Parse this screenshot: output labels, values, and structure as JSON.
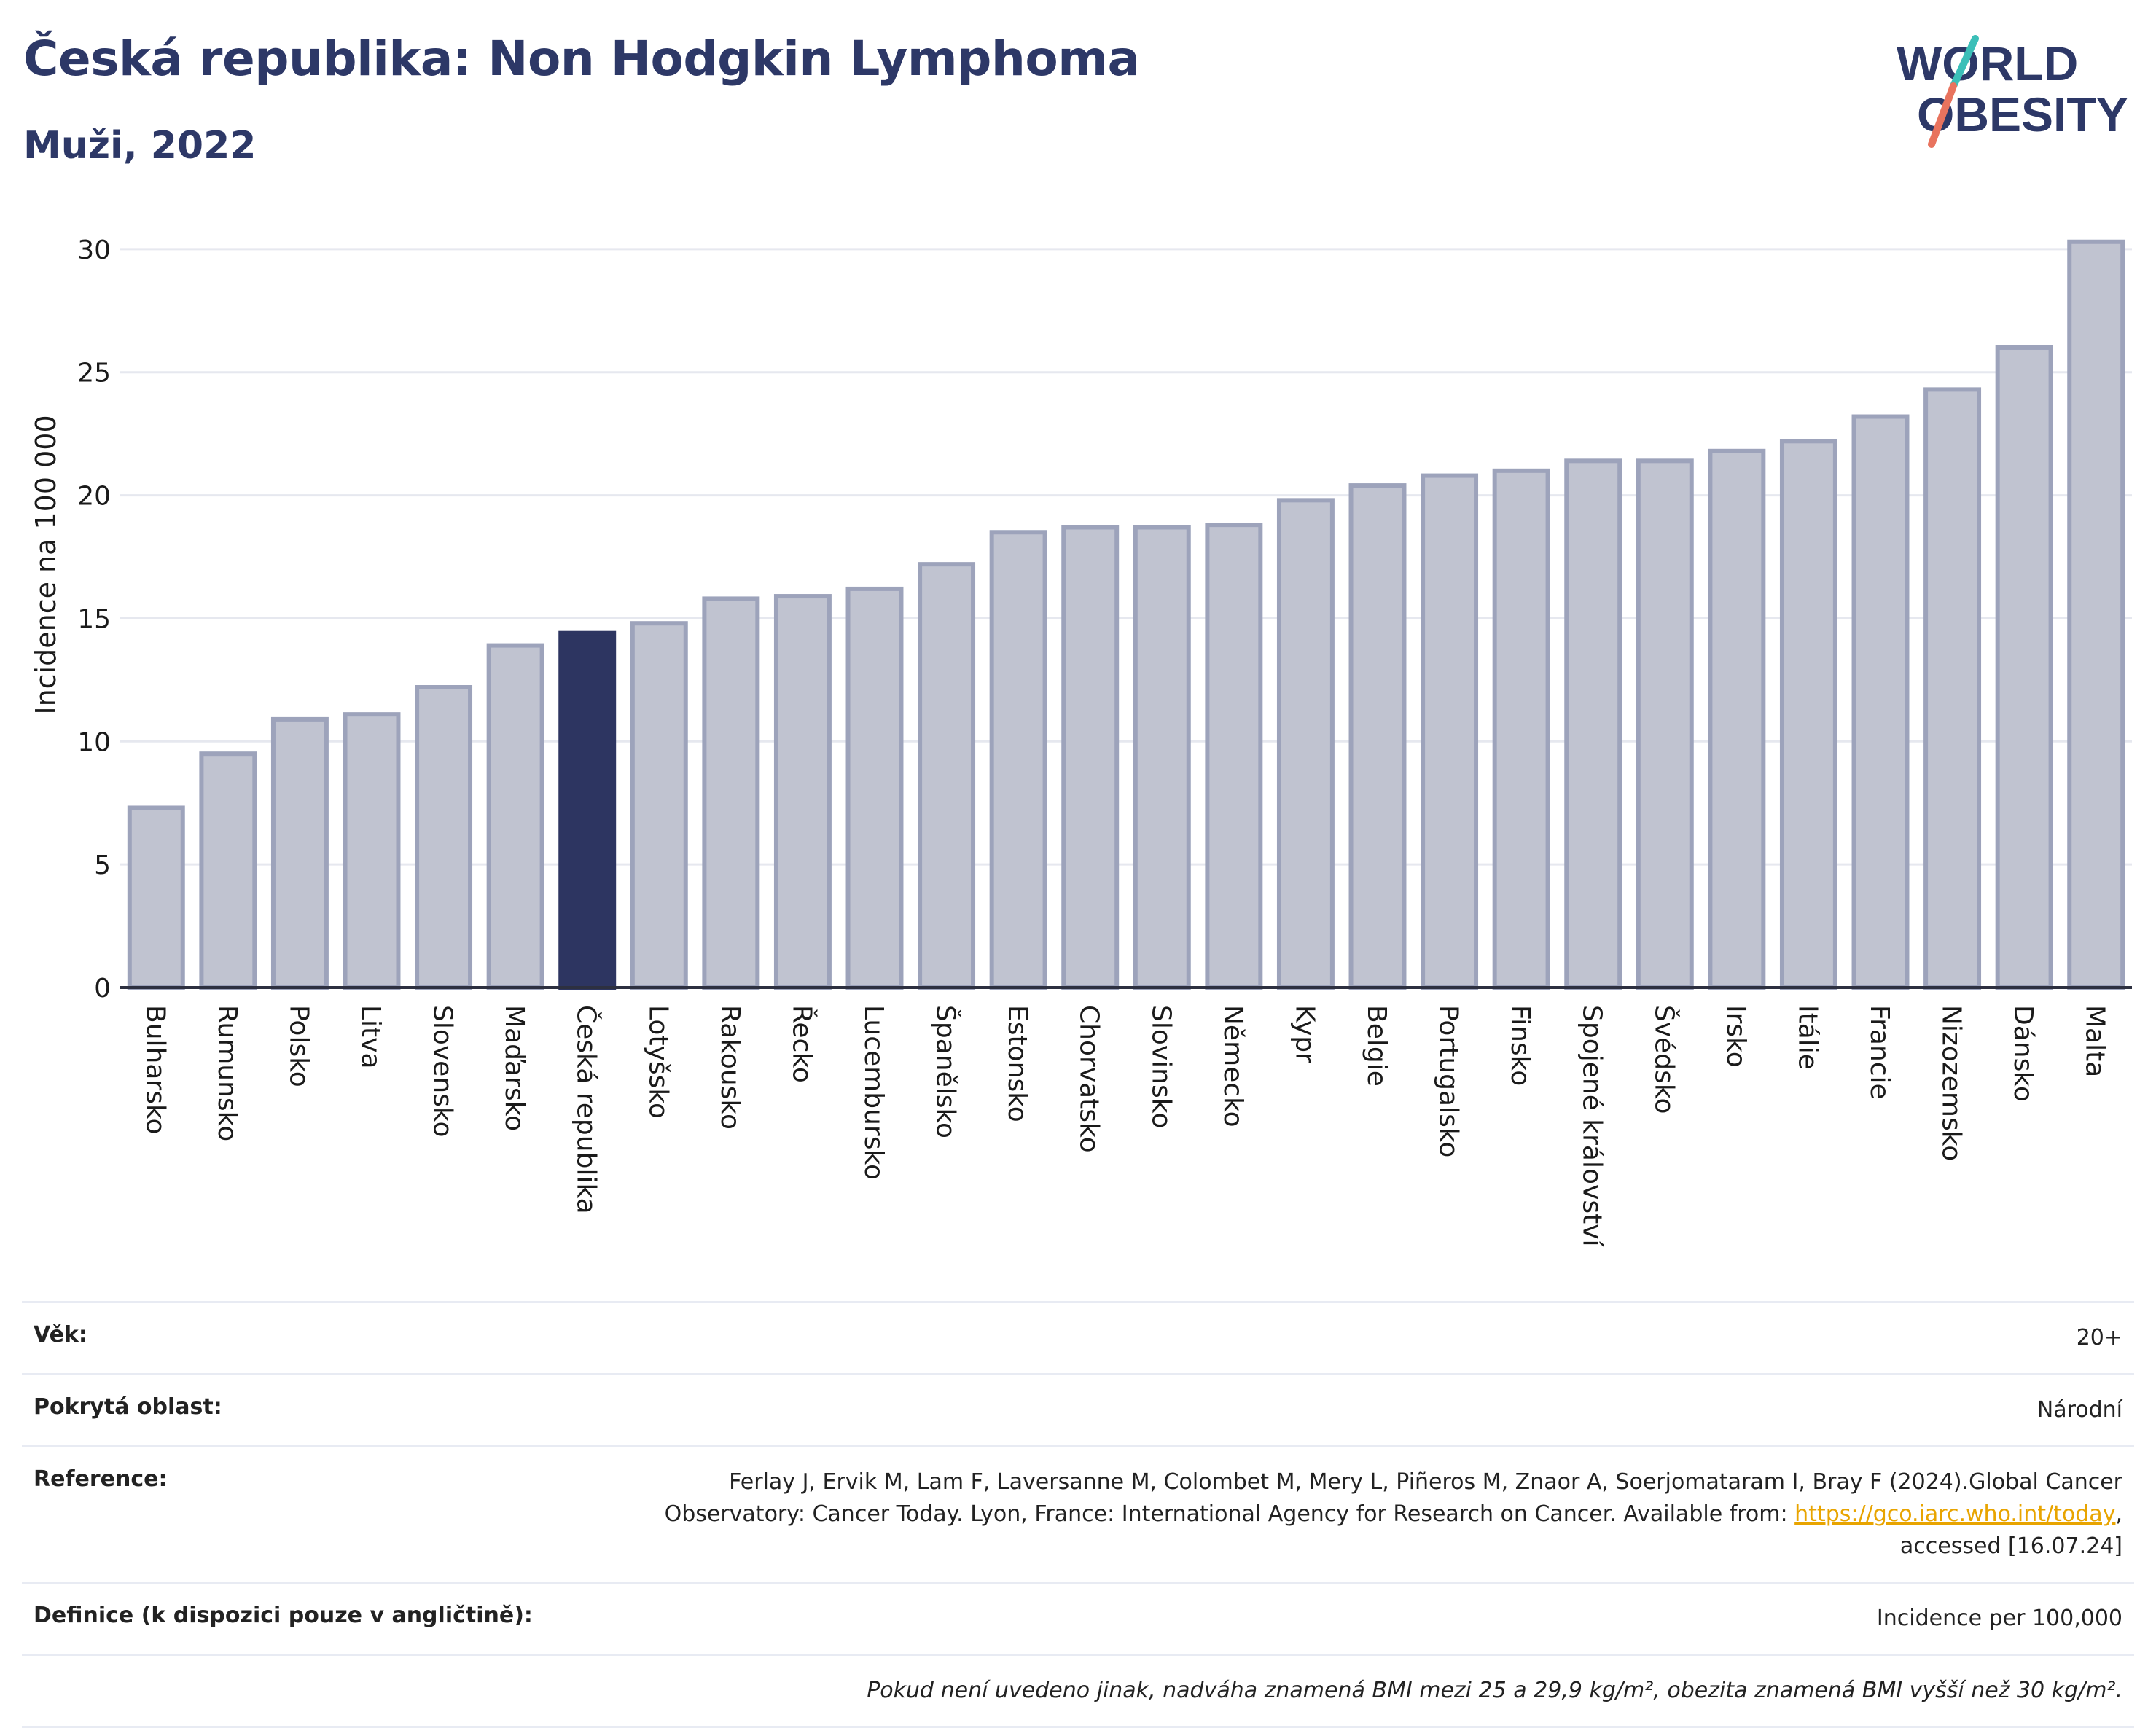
{
  "header": {
    "title": "Česká republika: Non Hodgkin Lymphoma",
    "subtitle": "Muži, 2022"
  },
  "logo": {
    "line1": "WORLD",
    "line2": "OBESITY",
    "accent_teal": "#3bbfb8",
    "accent_red": "#e8735e",
    "color": "#2d3867"
  },
  "chart_data": {
    "type": "bar",
    "ylabel": "Incidence na 100 000",
    "ylim": [
      0,
      30
    ],
    "yticks": [
      0,
      5,
      10,
      15,
      20,
      25,
      30
    ],
    "grid": true,
    "highlight": "Česká republika",
    "colors": {
      "bar": "#c0c3d0",
      "bar_edge": "#9da3bb",
      "highlight": "#2d3561"
    },
    "categories": [
      "Bulharsko",
      "Rumunsko",
      "Polsko",
      "Litva",
      "Slovensko",
      "Maďarsko",
      "Česká republika",
      "Lotyšsko",
      "Rakousko",
      "Řecko",
      "Lucembursko",
      "Španělsko",
      "Estonsko",
      "Chorvatsko",
      "Slovinsko",
      "Německo",
      "Kypr",
      "Belgie",
      "Portugalsko",
      "Finsko",
      "Spojené království",
      "Švédsko",
      "Irsko",
      "Itálie",
      "Francie",
      "Nizozemsko",
      "Dánsko",
      "Malta"
    ],
    "values": [
      7.3,
      9.5,
      10.9,
      11.1,
      12.2,
      13.9,
      14.4,
      14.8,
      15.8,
      15.9,
      16.2,
      17.2,
      18.5,
      18.7,
      18.7,
      18.8,
      19.8,
      20.4,
      20.8,
      21.0,
      21.4,
      21.4,
      21.8,
      22.2,
      23.2,
      24.3,
      26.0,
      30.3
    ]
  },
  "info": {
    "age_label": "Věk:",
    "age_value": "20+",
    "area_label": "Pokrytá oblast:",
    "area_value": "Národní",
    "reference_label": "Reference:",
    "reference_text_1": "Ferlay J, Ervik M, Lam F, Laversanne M, Colombet M, Mery L, Piñeros M, Znaor A, Soerjomataram I, Bray F (2024).Global Cancer Observatory: Cancer Today. Lyon, France: International Agency for Research on Cancer. Available from: ",
    "reference_link": "https://gco.iarc.who.int/today",
    "reference_text_2": ", accessed [16.07.24]",
    "definition_label": "Definice (k dispozici pouze v angličtině):",
    "definition_value": "Incidence per 100,000",
    "note": "Pokud není uvedeno jinak, nadváha znamená BMI mezi 25 a 29,9 kg/m², obezita znamená BMI vyšší než 30 kg/m²."
  }
}
